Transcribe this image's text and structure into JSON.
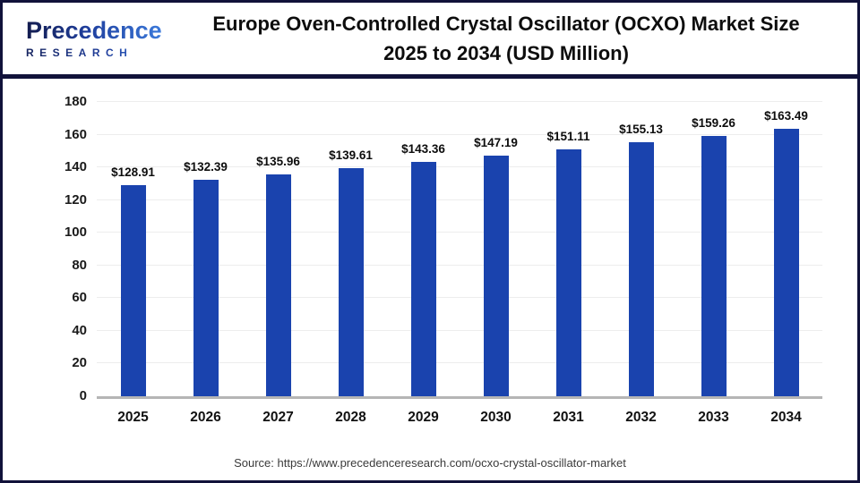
{
  "header": {
    "logo": {
      "brand": "Precedence",
      "sub": "RESEARCH"
    },
    "title": "Europe Oven-Controlled Crystal Oscillator (OCXO) Market Size\n2025 to 2034 (USD Million)"
  },
  "chart_data": {
    "type": "bar",
    "title": "Europe Oven-Controlled Crystal Oscillator (OCXO) Market Size 2025 to 2034 (USD Million)",
    "categories": [
      "2025",
      "2026",
      "2027",
      "2028",
      "2029",
      "2030",
      "2031",
      "2032",
      "2033",
      "2034"
    ],
    "values": [
      128.91,
      132.39,
      135.96,
      139.61,
      143.36,
      147.19,
      151.11,
      155.13,
      159.26,
      163.49
    ],
    "value_prefix": "$",
    "xlabel": "",
    "ylabel": "",
    "ylim": [
      0,
      180
    ],
    "yticks": [
      0,
      20,
      40,
      60,
      80,
      100,
      120,
      140,
      160,
      180
    ],
    "grid": "horizontal",
    "legend": "none",
    "bar_color": "#1a43ae"
  },
  "footer": {
    "source": "Source: https://www.precedenceresearch.com/ocxo-crystal-oscillator-market"
  },
  "colors": {
    "accent_navy": "#11123a",
    "bar_blue": "#1a43ae",
    "gridline": "#ededed",
    "axis_line": "#b5b5b5"
  }
}
